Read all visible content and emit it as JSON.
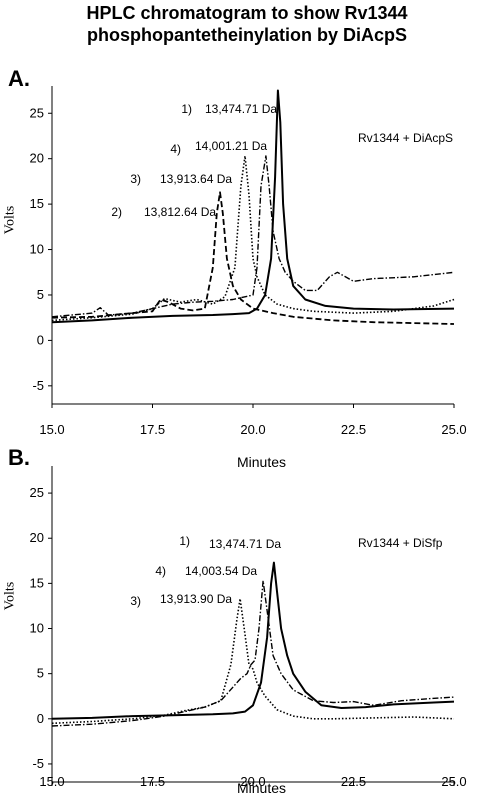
{
  "title_line1": "HPLC chromatogram to show Rv1344",
  "title_line2": "phosphopantetheinylation by DiAcpS",
  "chart_data": [
    {
      "type": "line",
      "panel_label": "A.",
      "legend_text": "Rv1344 + DiAcpS",
      "xlabel": "Minutes",
      "ylabel": "Volts",
      "xlim": [
        15.0,
        25.0
      ],
      "ylim": [
        -7,
        28
      ],
      "xticks": [
        "15.0",
        "17.5",
        "20.0",
        "22.5",
        "25.0"
      ],
      "yticks": [
        "-5",
        "0",
        "5",
        "10",
        "15",
        "20",
        "25"
      ],
      "annotations": [
        "1)",
        "13,474.71 Da",
        "4)",
        "14,001.21 Da",
        "3)",
        "13,913.64 Da",
        "2)",
        "13,812.64 Da"
      ],
      "series": [
        {
          "style": "solid",
          "x": [
            15.0,
            16.0,
            17.0,
            18.0,
            19.0,
            19.5,
            19.9,
            20.1,
            20.3,
            20.45,
            20.55,
            20.62,
            20.68,
            20.75,
            20.85,
            21.0,
            21.3,
            21.8,
            22.5,
            23.5,
            25.0
          ],
          "y": [
            2.0,
            2.2,
            2.5,
            2.7,
            2.8,
            2.9,
            3.0,
            3.5,
            5.0,
            9.0,
            18.0,
            27.5,
            24.0,
            15.0,
            9.0,
            6.0,
            4.5,
            3.8,
            3.5,
            3.4,
            3.5
          ]
        },
        {
          "style": "dashed",
          "x": [
            15.0,
            16.0,
            16.5,
            17.0,
            17.5,
            17.7,
            17.9,
            18.2,
            18.5,
            18.8,
            19.0,
            19.1,
            19.18,
            19.25,
            19.35,
            19.5,
            19.7,
            20.0,
            20.5,
            21.0,
            22.0,
            23.0,
            25.0
          ],
          "y": [
            2.5,
            2.6,
            2.8,
            3.0,
            3.2,
            4.5,
            4.2,
            3.5,
            3.3,
            3.5,
            8.0,
            14.0,
            16.3,
            14.0,
            9.0,
            6.0,
            4.5,
            3.5,
            3.0,
            2.6,
            2.2,
            2.0,
            1.8
          ]
        },
        {
          "style": "dotted",
          "x": [
            15.0,
            16.0,
            17.0,
            17.5,
            17.8,
            18.2,
            18.6,
            19.0,
            19.3,
            19.55,
            19.7,
            19.8,
            19.9,
            20.0,
            20.1,
            20.3,
            20.6,
            21.0,
            21.5,
            22.5,
            23.5,
            24.5,
            25.0
          ],
          "y": [
            2.2,
            2.5,
            2.9,
            3.5,
            4.6,
            4.2,
            4.5,
            4.0,
            4.8,
            8.0,
            17.0,
            20.3,
            16.0,
            9.0,
            7.0,
            5.0,
            4.0,
            3.5,
            3.2,
            3.0,
            3.2,
            3.8,
            4.5
          ]
        },
        {
          "style": "dashdot",
          "x": [
            15.0,
            16.0,
            16.2,
            16.4,
            17.0,
            17.5,
            18.0,
            18.5,
            19.0,
            19.5,
            20.0,
            20.1,
            20.2,
            20.32,
            20.4,
            20.5,
            20.65,
            20.8,
            21.0,
            21.3,
            21.6,
            21.9,
            22.1,
            22.5,
            23.0,
            24.0,
            25.0
          ],
          "y": [
            2.6,
            3.0,
            3.6,
            2.8,
            3.0,
            3.5,
            4.0,
            4.2,
            4.3,
            4.5,
            5.0,
            8.0,
            17.0,
            20.3,
            17.0,
            12.0,
            9.0,
            7.5,
            6.5,
            5.5,
            5.5,
            7.0,
            7.5,
            6.5,
            6.8,
            7.0,
            7.5
          ]
        }
      ]
    },
    {
      "type": "line",
      "panel_label": "B.",
      "legend_text": "Rv1344 + DiSfp",
      "top_label": "Minutes",
      "xlabel": "Minutes",
      "ylabel": "Volts",
      "xlim": [
        15.0,
        25.0
      ],
      "ylim": [
        -7,
        28
      ],
      "xticks": [
        "15.0",
        "17.5",
        "20.0",
        "22.5",
        "25.0"
      ],
      "yticks": [
        "-5",
        "0",
        "5",
        "10",
        "15",
        "20",
        "25"
      ],
      "annotations": [
        "1)",
        "13,474.71 Da",
        "4)",
        "14,003.54 Da",
        "3)",
        "13,913.90 Da"
      ],
      "series": [
        {
          "style": "solid",
          "x": [
            15.0,
            16.0,
            17.0,
            18.0,
            19.0,
            19.5,
            19.8,
            20.0,
            20.2,
            20.35,
            20.45,
            20.52,
            20.6,
            20.7,
            20.85,
            21.0,
            21.3,
            21.7,
            22.2,
            22.8,
            23.5,
            24.5,
            25.0
          ],
          "y": [
            0.0,
            0.1,
            0.3,
            0.4,
            0.5,
            0.6,
            0.8,
            1.5,
            4.0,
            9.0,
            15.0,
            17.3,
            14.0,
            10.0,
            7.0,
            5.0,
            3.0,
            1.5,
            1.2,
            1.3,
            1.6,
            1.8,
            1.9
          ]
        },
        {
          "style": "dotted",
          "x": [
            15.0,
            16.0,
            17.0,
            17.8,
            18.3,
            18.8,
            19.2,
            19.45,
            19.6,
            19.68,
            19.78,
            19.9,
            20.0,
            20.1,
            20.3,
            20.6,
            21.0,
            21.5,
            22.0,
            23.0,
            24.0,
            25.0
          ],
          "y": [
            -0.5,
            -0.3,
            0.0,
            0.4,
            0.9,
            1.3,
            2.0,
            6.0,
            11.0,
            13.3,
            10.0,
            6.0,
            5.5,
            4.0,
            2.5,
            1.0,
            0.3,
            0.0,
            0.0,
            0.1,
            0.2,
            0.0
          ]
        },
        {
          "style": "dashdot",
          "x": [
            15.0,
            16.0,
            17.0,
            17.8,
            18.3,
            18.8,
            19.2,
            19.5,
            19.7,
            19.85,
            19.95,
            20.05,
            20.15,
            20.25,
            20.35,
            20.5,
            20.7,
            21.0,
            21.5,
            22.0,
            22.5,
            23.0,
            23.7,
            24.3,
            25.0
          ],
          "y": [
            -0.8,
            -0.6,
            -0.2,
            0.3,
            0.8,
            1.3,
            2.0,
            3.5,
            4.5,
            5.0,
            6.0,
            6.5,
            10.0,
            15.3,
            12.0,
            7.0,
            5.0,
            3.2,
            2.0,
            1.8,
            1.9,
            1.5,
            2.0,
            2.2,
            2.4
          ]
        }
      ]
    }
  ]
}
